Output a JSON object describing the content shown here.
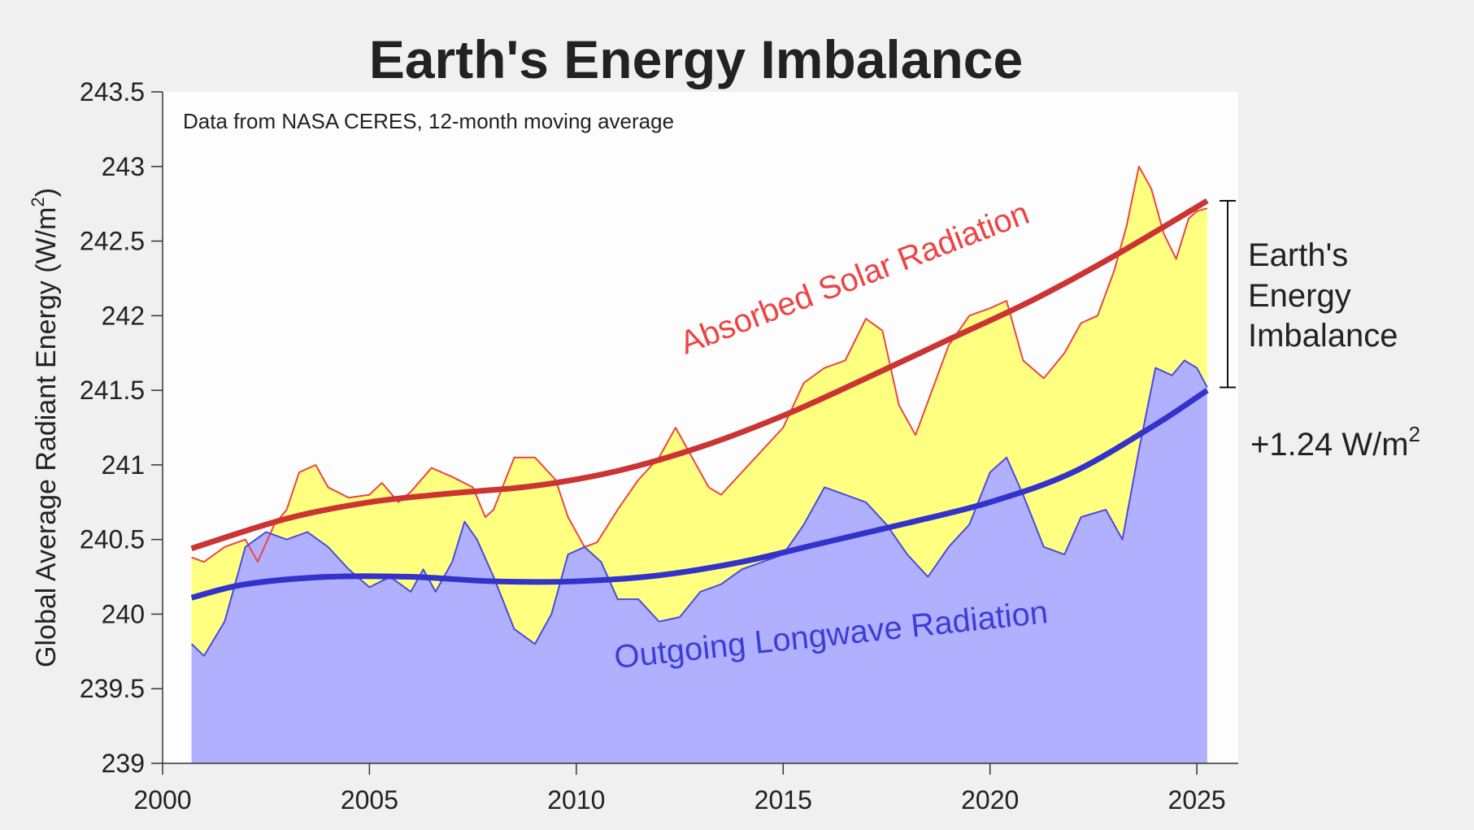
{
  "chart_data": {
    "type": "area",
    "title": "Earth's Energy Imbalance",
    "subtitle": "Data from NASA CERES, 12-month moving average",
    "xlabel": "",
    "ylabel": "Global  Average  Radiant  Energy  (W/m",
    "ylabel_sup": "2",
    "ylabel_close": ")",
    "xlim": [
      2000,
      2026
    ],
    "ylim": [
      239,
      243.5
    ],
    "grid": false,
    "x_ticks": [
      2000,
      2005,
      2010,
      2015,
      2020,
      2025
    ],
    "x_tick_labels": [
      "2000",
      "2005",
      "2010",
      "2015",
      "2020",
      "2025"
    ],
    "y_ticks": [
      239,
      239.5,
      240,
      240.5,
      241,
      241.5,
      242,
      242.5,
      243,
      243.5
    ],
    "y_tick_labels": [
      "239",
      "239.5",
      "240",
      "240.5",
      "241",
      "241.5",
      "242",
      "242.5",
      "243",
      "243.5"
    ],
    "series": [
      {
        "name": "Absorbed Solar Radiation",
        "label": "Absorbed Solar Radiation",
        "line_color": "#ee4444",
        "fill_color": "#ffff80",
        "x": [
          2000.7,
          2001.0,
          2001.5,
          2002.0,
          2002.3,
          2002.7,
          2003.0,
          2003.3,
          2003.7,
          2004.0,
          2004.5,
          2005.0,
          2005.3,
          2005.7,
          2006.0,
          2006.5,
          2007.0,
          2007.5,
          2007.8,
          2008.0,
          2008.5,
          2009.0,
          2009.5,
          2009.8,
          2010.2,
          2010.5,
          2011.0,
          2011.5,
          2012.0,
          2012.4,
          2012.8,
          2013.2,
          2013.5,
          2014.0,
          2014.5,
          2015.0,
          2015.5,
          2016.0,
          2016.5,
          2017.0,
          2017.4,
          2017.8,
          2018.2,
          2018.6,
          2019.0,
          2019.5,
          2020.0,
          2020.4,
          2020.8,
          2021.3,
          2021.8,
          2022.2,
          2022.6,
          2023.0,
          2023.3,
          2023.6,
          2023.9,
          2024.2,
          2024.5,
          2024.8,
          2025.0,
          2025.25
        ],
        "values": [
          240.38,
          240.35,
          240.45,
          240.5,
          240.35,
          240.6,
          240.7,
          240.95,
          241.0,
          240.85,
          240.78,
          240.8,
          240.88,
          240.75,
          240.82,
          240.98,
          240.92,
          240.85,
          240.65,
          240.7,
          241.05,
          241.05,
          240.9,
          240.65,
          240.45,
          240.48,
          240.7,
          240.9,
          241.05,
          241.25,
          241.05,
          240.85,
          240.8,
          240.95,
          241.1,
          241.25,
          241.55,
          241.65,
          241.7,
          241.98,
          241.9,
          241.4,
          241.2,
          241.5,
          241.8,
          242.0,
          242.05,
          242.1,
          241.7,
          241.58,
          241.75,
          241.95,
          242.0,
          242.3,
          242.6,
          243.0,
          242.85,
          242.55,
          242.38,
          242.65,
          242.7,
          242.72
        ]
      },
      {
        "name": "Outgoing Longwave Radiation",
        "label": "Outgoing Longwave Radiation",
        "line_color": "#4a4ae0",
        "fill_color": "#b0b0ff",
        "x": [
          2000.7,
          2001.0,
          2001.5,
          2002.0,
          2002.5,
          2003.0,
          2003.5,
          2004.0,
          2004.5,
          2005.0,
          2005.5,
          2006.0,
          2006.3,
          2006.6,
          2007.0,
          2007.3,
          2007.6,
          2008.0,
          2008.5,
          2009.0,
          2009.4,
          2009.8,
          2010.2,
          2010.6,
          2011.0,
          2011.5,
          2012.0,
          2012.5,
          2013.0,
          2013.5,
          2014.0,
          2014.5,
          2015.0,
          2015.5,
          2016.0,
          2016.5,
          2017.0,
          2017.5,
          2018.0,
          2018.5,
          2019.0,
          2019.5,
          2020.0,
          2020.4,
          2020.8,
          2021.3,
          2021.8,
          2022.2,
          2022.8,
          2023.2,
          2023.6,
          2024.0,
          2024.4,
          2024.7,
          2025.0,
          2025.25
        ],
        "values": [
          239.8,
          239.72,
          239.95,
          240.45,
          240.55,
          240.5,
          240.55,
          240.45,
          240.3,
          240.18,
          240.25,
          240.15,
          240.3,
          240.15,
          240.35,
          240.62,
          240.5,
          240.25,
          239.9,
          239.8,
          240.0,
          240.4,
          240.45,
          240.35,
          240.1,
          240.1,
          239.95,
          239.98,
          240.15,
          240.2,
          240.3,
          240.35,
          240.4,
          240.6,
          240.85,
          240.8,
          240.75,
          240.6,
          240.4,
          240.25,
          240.45,
          240.6,
          240.95,
          241.05,
          240.8,
          240.45,
          240.4,
          240.65,
          240.7,
          240.5,
          241.1,
          241.65,
          241.6,
          241.7,
          241.65,
          241.52
        ]
      }
    ],
    "trends": [
      {
        "name": "Absorbed Solar Radiation trend",
        "color": "#cc3333",
        "x": [
          2000.7,
          2003,
          2005,
          2007,
          2009,
          2011,
          2013,
          2015,
          2017,
          2019,
          2021,
          2023,
          2025.25
        ],
        "values": [
          240.44,
          240.64,
          240.75,
          240.81,
          240.86,
          240.96,
          241.12,
          241.33,
          241.58,
          241.84,
          242.1,
          242.4,
          242.77
        ]
      },
      {
        "name": "Outgoing Longwave Radiation trend",
        "color": "#3333cc",
        "x": [
          2000.7,
          2002,
          2004,
          2006,
          2008,
          2010,
          2012,
          2014,
          2016,
          2018,
          2020,
          2022,
          2024,
          2025.25
        ],
        "values": [
          240.11,
          240.2,
          240.25,
          240.25,
          240.22,
          240.22,
          240.26,
          240.35,
          240.48,
          240.61,
          240.75,
          240.95,
          241.27,
          241.5
        ]
      }
    ],
    "annotations": {
      "imbalance_bracket": {
        "top": 242.77,
        "bottom": 241.52
      },
      "imbalance_label_lines": [
        "Earth's",
        "Energy",
        "Imbalance"
      ],
      "imbalance_value": "+1.24  W/m",
      "imbalance_value_sup": "2"
    },
    "legend": "inline-labels"
  }
}
